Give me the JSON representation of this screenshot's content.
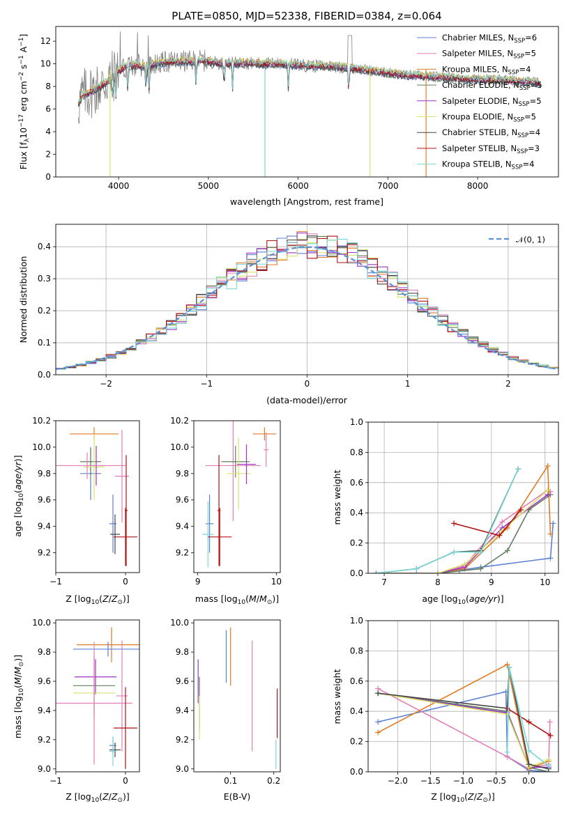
{
  "title": "PLATE=0850, MJD=52338, FIBERID=0384, z=0.064",
  "colors": {
    "chabrier_miles": "#5b7fd4",
    "salpeter_miles": "#e37db6",
    "kroupa_miles": "#e07b24",
    "chabrier_elodie": "#5f7f5a",
    "salpeter_elodie": "#9a33c4",
    "kroupa_elodie": "#d8e36a",
    "chabrier_stelib": "#444444",
    "salpeter_stelib": "#b01010",
    "kroupa_stelib": "#78d8d8",
    "data": "#808080",
    "normal": "#5b8fd8"
  },
  "chart_data": [
    {
      "id": "spectrum",
      "type": "line",
      "title": "PLATE=0850, MJD=52338, FIBERID=0384, z=0.064",
      "xlabel": "wavelength [Angstrom, rest frame]",
      "ylabel_plain": "Flux [fλ10⁻¹⁷ erg cm⁻² s⁻¹ A⁻¹]",
      "xlim": [
        3300,
        8900
      ],
      "ylim": [
        0,
        13.3
      ],
      "xticks": [
        4000,
        5000,
        6000,
        7000,
        8000
      ],
      "yticks": [
        0,
        2,
        4,
        6,
        8,
        10,
        12
      ],
      "legend_position": "top-right",
      "legend": [
        {
          "label": "Chabrier MILES, N",
          "sub": "SSP",
          "suffix": "=6",
          "color_key": "chabrier_miles"
        },
        {
          "label": "Salpeter MILES, N",
          "sub": "SSP",
          "suffix": "=5",
          "color_key": "salpeter_miles"
        },
        {
          "label": "Kroupa MILES, N",
          "sub": "SSP",
          "suffix": "=4",
          "color_key": "kroupa_miles"
        },
        {
          "label": "Chabrier ELODIE, N",
          "sub": "SSP",
          "suffix": "=5",
          "color_key": "chabrier_elodie"
        },
        {
          "label": "Salpeter ELODIE, N",
          "sub": "SSP",
          "suffix": "=5",
          "color_key": "salpeter_elodie"
        },
        {
          "label": "Kroupa ELODIE, N",
          "sub": "SSP",
          "suffix": "=5",
          "color_key": "kroupa_elodie"
        },
        {
          "label": "Chabrier STELIB, N",
          "sub": "SSP",
          "suffix": "=4",
          "color_key": "chabrier_stelib"
        },
        {
          "label": "Salpeter STELIB, N",
          "sub": "SSP",
          "suffix": "=3",
          "color_key": "salpeter_stelib"
        },
        {
          "label": "Kroupa STELIB, N",
          "sub": "SSP",
          "suffix": "=4",
          "color_key": "kroupa_stelib"
        }
      ],
      "continuum": [
        [
          3550,
          6.4
        ],
        [
          3600,
          7.2
        ],
        [
          3700,
          7.6
        ],
        [
          3800,
          8.0
        ],
        [
          3900,
          8.6
        ],
        [
          4000,
          9.4
        ],
        [
          4100,
          9.8
        ],
        [
          4200,
          9.9
        ],
        [
          4300,
          9.7
        ],
        [
          4400,
          10.0
        ],
        [
          4500,
          10.1
        ],
        [
          4600,
          10.2
        ],
        [
          4700,
          10.2
        ],
        [
          4800,
          10.2
        ],
        [
          4900,
          10.3
        ],
        [
          5000,
          10.2
        ],
        [
          5200,
          10.0
        ],
        [
          5400,
          10.1
        ],
        [
          5600,
          10.0
        ],
        [
          5800,
          10.0
        ],
        [
          6000,
          9.9
        ],
        [
          6200,
          9.8
        ],
        [
          6400,
          9.8
        ],
        [
          6600,
          9.6
        ],
        [
          6800,
          9.4
        ],
        [
          7000,
          9.2
        ],
        [
          7200,
          9.0
        ],
        [
          7400,
          8.9
        ],
        [
          7600,
          8.8
        ],
        [
          7800,
          8.7
        ],
        [
          8000,
          8.6
        ],
        [
          8200,
          8.6
        ],
        [
          8400,
          8.5
        ],
        [
          8600,
          8.4
        ],
        [
          8700,
          8.2
        ]
      ]
    },
    {
      "id": "residuals",
      "type": "line",
      "xlabel": "(data-model)/error",
      "ylabel": "Normed distribution",
      "xlim": [
        -2.5,
        2.5
      ],
      "ylim": [
        0,
        0.47
      ],
      "xticks": [
        -2,
        -1,
        0,
        1,
        2
      ],
      "yticks": [
        0.0,
        0.1,
        0.2,
        0.3,
        0.4
      ],
      "grid": true,
      "legend_position": "top-right",
      "legend": [
        {
          "label": "N(0,1)",
          "color_key": "normal",
          "style": "dashed"
        }
      ],
      "bin_width": 0.1
    },
    {
      "id": "age-vs-Z",
      "type": "scatter",
      "xlabel": "Z [log10(Z/Z⊙)]",
      "ylabel": "age [log10(age/yr)]",
      "xlim": [
        -1.0,
        0.2
      ],
      "ylim": [
        9.05,
        10.2
      ],
      "xticks": [
        -1,
        0
      ],
      "yticks": [
        9.2,
        9.4,
        9.6,
        9.8,
        10.0,
        10.2
      ],
      "points": [
        {
          "c": "kroupa_miles",
          "x": -0.45,
          "xerr": 0.35,
          "y": 10.1,
          "yerr": 0.05
        },
        {
          "c": "salpeter_miles",
          "x": -0.05,
          "xerr": 0.1,
          "y": 9.78,
          "yerr": 0.35
        },
        {
          "c": "chabrier_miles",
          "x": -0.5,
          "xerr": 0.15,
          "y": 9.8,
          "yerr": 0.2
        },
        {
          "c": "chabrier_elodie",
          "x": -0.5,
          "xerr": 0.15,
          "y": 9.89,
          "yerr": 0.1
        },
        {
          "c": "kroupa_elodie",
          "x": -0.45,
          "xerr": 0.15,
          "y": 9.85,
          "yerr": 0.25
        },
        {
          "c": "salpeter_elodie",
          "x": -0.42,
          "xerr": 0.12,
          "y": 9.86,
          "yerr": 0.15
        },
        {
          "c": "salpeter_miles",
          "x": -0.55,
          "xerr": 0.55,
          "y": 9.86,
          "yerr": 0.1
        },
        {
          "c": "chabrier_miles",
          "x": -0.18,
          "xerr": 0.05,
          "y": 9.42,
          "yerr": 0.22
        },
        {
          "c": "chabrier_stelib",
          "x": -0.15,
          "xerr": 0.07,
          "y": 9.34,
          "yerr": 0.15
        },
        {
          "c": "salpeter_stelib",
          "x": 0.0,
          "xerr": 0.17,
          "y": 9.32,
          "yerr": 0.22
        },
        {
          "c": "salpeter_stelib",
          "x": 0.01,
          "xerr": 0.02,
          "y": 9.52,
          "yerr": 0.42
        }
      ]
    },
    {
      "id": "age-vs-mass",
      "type": "scatter",
      "xlabel": "mass [log10(M/M⊙)]",
      "xlim": [
        8.95,
        10.05
      ],
      "ylim": [
        9.05,
        10.2
      ],
      "xticks": [
        9,
        10
      ],
      "yticks": [
        9.2,
        9.4,
        9.6,
        9.8,
        10.0,
        10.2
      ],
      "points": [
        {
          "c": "kroupa_miles",
          "x": 9.85,
          "xerr": 0.15,
          "y": 10.1,
          "yerr": 0.05
        },
        {
          "c": "salpeter_miles",
          "x": 9.45,
          "xerr": 0.35,
          "y": 9.86,
          "yerr": 0.42
        },
        {
          "c": "chabrier_elodie",
          "x": 9.48,
          "xerr": 0.18,
          "y": 9.89,
          "yerr": 0.12
        },
        {
          "c": "kroupa_elodie",
          "x": 9.52,
          "xerr": 0.15,
          "y": 9.8,
          "yerr": 0.27
        },
        {
          "c": "salpeter_elodie",
          "x": 9.62,
          "xerr": 0.12,
          "y": 9.87,
          "yerr": 0.15
        },
        {
          "c": "chabrier_miles",
          "x": 9.15,
          "xerr": 0.05,
          "y": 9.42,
          "yerr": 0.22
        },
        {
          "c": "kroupa_stelib",
          "x": 9.13,
          "xerr": 0.07,
          "y": 9.34,
          "yerr": 0.25
        },
        {
          "c": "salpeter_stelib",
          "x": 9.28,
          "xerr": 0.15,
          "y": 9.32,
          "yerr": 0.22
        },
        {
          "c": "salpeter_stelib",
          "x": 9.27,
          "xerr": 0.02,
          "y": 9.52,
          "yerr": 0.42
        },
        {
          "c": "salpeter_miles",
          "x": 9.87,
          "xerr": 0.03,
          "y": 9.98,
          "yerr": 0.13
        }
      ]
    },
    {
      "id": "weight-vs-age",
      "type": "line",
      "xlabel": "age [log10(age/yr)]",
      "ylabel": "mass weight",
      "xlim": [
        6.7,
        10.25
      ],
      "ylim": [
        0,
        1.0
      ],
      "xticks": [
        7,
        8,
        9,
        10
      ],
      "yticks": [
        0.0,
        0.2,
        0.4,
        0.6,
        0.8,
        1.0
      ],
      "grid": true,
      "series": [
        {
          "c": "chabrier_miles",
          "x": [
            6.85,
            7.6,
            8.0,
            8.4,
            8.8,
            10.1,
            10.15
          ],
          "y": [
            0.0,
            0.0,
            0.0,
            0.02,
            0.04,
            0.1,
            0.33
          ]
        },
        {
          "c": "salpeter_miles",
          "x": [
            6.85,
            8.0,
            8.5,
            9.2,
            10.05,
            10.1
          ],
          "y": [
            0.0,
            0.0,
            0.05,
            0.34,
            0.55,
            0.54
          ]
        },
        {
          "c": "kroupa_miles",
          "x": [
            6.85,
            8.0,
            8.5,
            9.3,
            10.05,
            10.1
          ],
          "y": [
            0.0,
            0.0,
            0.03,
            0.3,
            0.71,
            0.26
          ]
        },
        {
          "c": "chabrier_elodie",
          "x": [
            6.85,
            8.0,
            8.8,
            9.3,
            9.7,
            10.1
          ],
          "y": [
            0.0,
            0.0,
            0.03,
            0.15,
            0.42,
            0.52
          ]
        },
        {
          "c": "salpeter_elodie",
          "x": [
            6.85,
            8.0,
            8.5,
            9.2,
            10.05
          ],
          "y": [
            0.0,
            0.0,
            0.04,
            0.3,
            0.52
          ]
        },
        {
          "c": "kroupa_elodie",
          "x": [
            6.85,
            8.0,
            8.5,
            9.2,
            10.05
          ],
          "y": [
            0.0,
            0.0,
            0.06,
            0.28,
            0.55
          ]
        },
        {
          "c": "chabrier_stelib",
          "x": [
            6.85,
            7.6,
            8.3,
            8.8,
            9.5
          ],
          "y": [
            0.0,
            0.03,
            0.14,
            0.15,
            0.69
          ]
        },
        {
          "c": "salpeter_stelib",
          "x": [
            8.3,
            9.15,
            9.55
          ],
          "y": [
            0.33,
            0.25,
            0.42
          ]
        },
        {
          "c": "kroupa_stelib",
          "x": [
            6.85,
            7.6,
            8.3,
            8.8,
            9.5
          ],
          "y": [
            0.0,
            0.03,
            0.14,
            0.14,
            0.69
          ]
        }
      ]
    },
    {
      "id": "mass-vs-Z",
      "type": "scatter",
      "xlabel": "Z [log10(Z/Z⊙)]",
      "ylabel": "mass [log10(M/M⊙)]",
      "xlim": [
        -1.0,
        0.2
      ],
      "ylim": [
        8.98,
        10.02
      ],
      "xticks": [
        -1,
        0
      ],
      "yticks": [
        9.0,
        9.2,
        9.4,
        9.6,
        9.8,
        10.0
      ],
      "points": [
        {
          "c": "kroupa_miles",
          "x": -0.2,
          "xerr": 0.5,
          "y": 9.85,
          "yerr": 0.12
        },
        {
          "c": "chabrier_miles",
          "x": -0.25,
          "xerr": 0.5,
          "y": 9.82,
          "yerr": 0.05
        },
        {
          "c": "salpeter_elodie",
          "x": -0.43,
          "xerr": 0.3,
          "y": 9.63,
          "yerr": 0.12
        },
        {
          "c": "chabrier_elodie",
          "x": -0.45,
          "xerr": 0.3,
          "y": 9.57,
          "yerr": 0.2
        },
        {
          "c": "kroupa_elodie",
          "x": -0.45,
          "xerr": 0.3,
          "y": 9.52,
          "yerr": 0.2
        },
        {
          "c": "salpeter_miles",
          "x": -0.45,
          "xerr": 0.55,
          "y": 9.45,
          "yerr": 0.42
        },
        {
          "c": "salpeter_miles",
          "x": -0.05,
          "xerr": 0.08,
          "y": 9.5,
          "yerr": 0.38
        },
        {
          "c": "salpeter_stelib",
          "x": 0.0,
          "xerr": 0.17,
          "y": 9.28,
          "yerr": 0.28
        },
        {
          "c": "chabrier_miles",
          "x": -0.18,
          "xerr": 0.05,
          "y": 9.16,
          "yerr": 0.06
        },
        {
          "c": "chabrier_stelib",
          "x": -0.15,
          "xerr": 0.08,
          "y": 9.13,
          "yerr": 0.05
        },
        {
          "c": "kroupa_stelib",
          "x": -0.18,
          "xerr": 0.05,
          "y": 9.12,
          "yerr": 0.1
        }
      ]
    },
    {
      "id": "mass-vs-ebv",
      "type": "scatter",
      "xlabel": "E(B-V)",
      "xlim": [
        0.015,
        0.215
      ],
      "ylim": [
        8.98,
        10.02
      ],
      "xticks": [
        0.1,
        0.2
      ],
      "yticks": [
        9.0,
        9.2,
        9.4,
        9.6,
        9.8,
        10.0
      ],
      "points": [
        {
          "c": "salpeter_elodie",
          "x": 0.025,
          "y": 9.6,
          "yerr": 0.15
        },
        {
          "c": "chabrier_elodie",
          "x": 0.028,
          "y": 9.45,
          "yerr": 0.18
        },
        {
          "c": "kroupa_elodie",
          "x": 0.028,
          "y": 9.35,
          "yerr": 0.15
        },
        {
          "c": "chabrier_miles",
          "x": 0.09,
          "y": 9.77,
          "yerr": 0.18
        },
        {
          "c": "kroupa_miles",
          "x": 0.1,
          "y": 9.77,
          "yerr": 0.2
        },
        {
          "c": "salpeter_miles",
          "x": 0.15,
          "y": 9.5,
          "yerr": 0.38
        },
        {
          "c": "salpeter_stelib",
          "x": 0.208,
          "y": 9.38,
          "yerr": 0.17
        },
        {
          "c": "kroupa_stelib",
          "x": 0.205,
          "y": 9.1,
          "yerr": 0.1
        }
      ]
    },
    {
      "id": "weight-vs-Z",
      "type": "line",
      "xlabel": "Z [log10(Z/Z⊙)]",
      "ylabel": "mass weight",
      "xlim": [
        -2.45,
        0.45
      ],
      "ylim": [
        0,
        1.0
      ],
      "xticks": [
        -2.0,
        -1.5,
        -1.0,
        -0.5,
        0.0
      ],
      "yticks": [
        0.0,
        0.2,
        0.4,
        0.6,
        0.8,
        1.0
      ],
      "grid": true,
      "series": [
        {
          "c": "chabrier_miles",
          "x": [
            -2.3,
            -0.35,
            -0.33,
            0.0,
            0.3
          ],
          "y": [
            0.33,
            0.53,
            0.1,
            0.01,
            0.0
          ]
        },
        {
          "c": "salpeter_miles",
          "x": [
            -2.3,
            -0.33,
            0.0,
            0.3,
            0.32
          ],
          "y": [
            0.55,
            0.1,
            0.02,
            0.05,
            0.33
          ]
        },
        {
          "c": "kroupa_miles",
          "x": [
            -2.3,
            -0.33,
            0.0,
            0.3
          ],
          "y": [
            0.26,
            0.71,
            0.02,
            0.07
          ]
        },
        {
          "c": "chabrier_elodie",
          "x": [
            -2.3,
            -0.33,
            0.0,
            0.3
          ],
          "y": [
            0.52,
            0.4,
            0.03,
            0.0
          ]
        },
        {
          "c": "salpeter_elodie",
          "x": [
            -2.3,
            -0.33,
            0.0,
            0.3
          ],
          "y": [
            0.52,
            0.39,
            0.03,
            0.03
          ]
        },
        {
          "c": "kroupa_elodie",
          "x": [
            -2.3,
            -0.33,
            0.0,
            0.3
          ],
          "y": [
            0.52,
            0.38,
            0.03,
            0.08
          ]
        },
        {
          "c": "chabrier_stelib",
          "x": [
            -2.3,
            -0.33,
            -0.3,
            0.0,
            0.3
          ],
          "y": [
            0.52,
            0.42,
            0.69,
            0.05,
            0.02
          ]
        },
        {
          "c": "salpeter_stelib",
          "x": [
            -0.33,
            0.0,
            0.33
          ],
          "y": [
            0.42,
            0.33,
            0.24
          ]
        },
        {
          "c": "kroupa_stelib",
          "x": [
            -0.33,
            -0.3,
            0.0,
            0.3
          ],
          "y": [
            0.13,
            0.69,
            0.14,
            0.04
          ]
        }
      ]
    }
  ]
}
